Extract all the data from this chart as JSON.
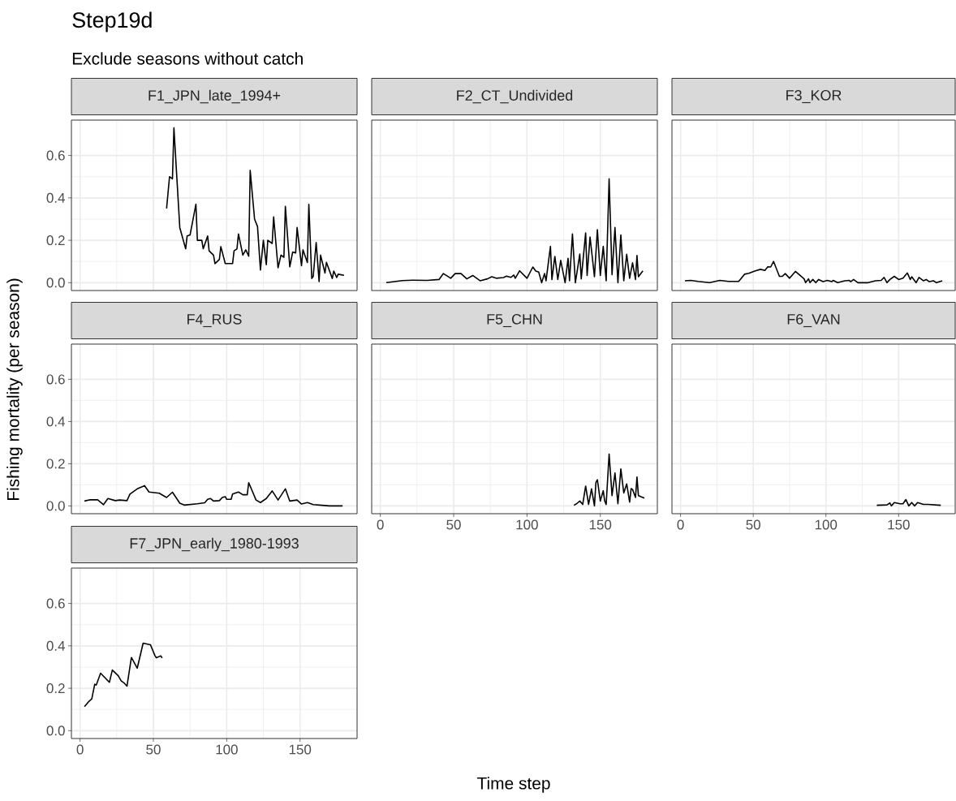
{
  "chart_data": [
    {
      "type": "line",
      "title": "F1_JPN_late_1994+",
      "annotations": [
        "Step19d",
        "Exclude seasons without catch",
        "Time step"
      ],
      "color": "#000000",
      "grid": true,
      "tick_labels": "y",
      "xlim": [
        -5.9,
        188.9
      ],
      "ylim": [
        -0.037,
        0.767
      ],
      "xticks": [
        0,
        50,
        100,
        150
      ],
      "yticks": [
        {
          "value": 0,
          "label": "0.0"
        },
        0.2,
        0.4,
        0.6
      ],
      "x": [
        59,
        61,
        63,
        64,
        68,
        72,
        73,
        75,
        79,
        80,
        83,
        84,
        87,
        88,
        91,
        92,
        95,
        96,
        99,
        104,
        105,
        107,
        108,
        111,
        113,
        115,
        116,
        119,
        121,
        123,
        125,
        127,
        128,
        131,
        132,
        135,
        137,
        139,
        140,
        143,
        145,
        147,
        148,
        151,
        152,
        155,
        156,
        158,
        159,
        161,
        163,
        164,
        167,
        168,
        172,
        173,
        175,
        176,
        180
      ],
      "values": [
        0.35,
        0.5,
        0.49,
        0.73,
        0.26,
        0.16,
        0.22,
        0.225,
        0.37,
        0.2,
        0.2,
        0.16,
        0.22,
        0.15,
        0.13,
        0.09,
        0.11,
        0.17,
        0.09,
        0.09,
        0.15,
        0.16,
        0.23,
        0.13,
        0.155,
        0.125,
        0.53,
        0.3,
        0.265,
        0.06,
        0.2,
        0.085,
        0.2,
        0.185,
        0.31,
        0.07,
        0.13,
        0.12,
        0.36,
        0.075,
        0.145,
        0.14,
        0.26,
        0.08,
        0.155,
        0.095,
        0.37,
        0.02,
        0.03,
        0.19,
        0.005,
        0.13,
        0.046,
        0.096,
        0.02,
        0.055,
        0.025,
        0.04,
        0.035
      ]
    },
    {
      "type": "line",
      "title": "F2_CT_Undivided",
      "color": "#000000",
      "grid": true,
      "tick_labels": false,
      "xlim": [
        -5.9,
        188.9
      ],
      "ylim": [
        -0.037,
        0.767
      ],
      "xticks": [
        0,
        50,
        100,
        150
      ],
      "yticks": [
        {
          "value": 0,
          "label": null
        },
        {
          "value": 0.2,
          "label": null
        },
        {
          "value": 0.4,
          "label": null
        },
        {
          "value": 0.6,
          "label": null
        }
      ],
      "x": [
        4,
        15,
        22,
        32,
        40,
        43,
        48,
        51,
        55,
        59,
        63,
        68,
        73,
        76,
        79,
        84,
        86,
        89,
        91,
        92,
        95,
        100,
        104,
        106,
        108,
        110,
        112,
        113,
        116,
        117,
        119,
        121,
        123,
        126,
        128,
        129,
        131,
        133,
        136,
        137,
        140,
        141,
        143,
        146,
        148,
        150,
        152,
        154,
        156,
        158,
        160,
        162,
        164,
        166,
        168,
        170,
        172,
        174,
        175,
        176,
        179
      ],
      "values": [
        0,
        0.01,
        0.012,
        0.011,
        0.015,
        0.043,
        0.021,
        0.043,
        0.043,
        0.018,
        0.034,
        0.009,
        0.018,
        0.028,
        0.021,
        0.024,
        0.031,
        0.025,
        0.036,
        0.021,
        0.056,
        0.021,
        0.074,
        0.055,
        0.05,
        0,
        0.043,
        0.009,
        0.171,
        0.015,
        0.124,
        0.015,
        0.105,
        0,
        0.115,
        0.009,
        0.23,
        0,
        0.135,
        0.018,
        0.235,
        0.034,
        0.215,
        0.028,
        0.25,
        0.034,
        0.171,
        0.009,
        0.49,
        0.038,
        0.26,
        0,
        0.225,
        0.009,
        0.134,
        0.021,
        0.094,
        0.015,
        0.128,
        0.028,
        0.056
      ]
    },
    {
      "type": "line",
      "title": "F3_KOR",
      "color": "#000000",
      "grid": true,
      "tick_labels": false,
      "xlim": [
        -5.9,
        188.9
      ],
      "ylim": [
        -0.037,
        0.767
      ],
      "xticks": [
        0,
        50,
        100,
        150
      ],
      "yticks": [
        {
          "value": 0,
          "label": null
        },
        {
          "value": 0.2,
          "label": null
        },
        {
          "value": 0.4,
          "label": null
        },
        {
          "value": 0.6,
          "label": null
        }
      ],
      "x": [
        3,
        7,
        12,
        20,
        27,
        33,
        40,
        44,
        47,
        51,
        55,
        58,
        60,
        62,
        64,
        68,
        70,
        72,
        75,
        79,
        85,
        86,
        88,
        89,
        91,
        93,
        95,
        98,
        101,
        104,
        105,
        108,
        113,
        116,
        117,
        119,
        122,
        129,
        134,
        138,
        140,
        142,
        144,
        147,
        150,
        153,
        156,
        158,
        159,
        162,
        164,
        167,
        169,
        171,
        174,
        176,
        180
      ],
      "values": [
        0.009,
        0.011,
        0.006,
        0,
        0.011,
        0.006,
        0.006,
        0.04,
        0.044,
        0.055,
        0.063,
        0.058,
        0.075,
        0.074,
        0.1,
        0.03,
        0.03,
        0.043,
        0.021,
        0.053,
        0.018,
        0,
        0.018,
        0,
        0.015,
        0,
        0.015,
        0.005,
        0.011,
        0.005,
        0.011,
        0,
        0.009,
        0.011,
        0.005,
        0.015,
        0,
        0,
        0.009,
        0.011,
        0.025,
        0,
        0.015,
        0.03,
        0.015,
        0.021,
        0.046,
        0.015,
        0.028,
        0,
        0.025,
        0.009,
        0.015,
        0.005,
        0.009,
        0,
        0.009
      ]
    },
    {
      "type": "line",
      "title": "F4_RUS",
      "ylabel": "Fishing mortality (per season)",
      "color": "#000000",
      "grid": true,
      "tick_labels": "y",
      "xlim": [
        -5.9,
        188.9
      ],
      "ylim": [
        -0.037,
        0.767
      ],
      "xticks": [
        0,
        50,
        100,
        150
      ],
      "yticks": [
        {
          "value": 0,
          "label": "0.0"
        },
        0.2,
        0.4,
        0.6
      ],
      "x": [
        3,
        7,
        12,
        16,
        19,
        24,
        27,
        32,
        34,
        39,
        44,
        47,
        54,
        59,
        63,
        68,
        71,
        80,
        85,
        87,
        89,
        91,
        95,
        97,
        99,
        100,
        103,
        104,
        108,
        111,
        114,
        115,
        120,
        123,
        127,
        131,
        135,
        140,
        143,
        148,
        151,
        155,
        159,
        165,
        170,
        179
      ],
      "values": [
        0.023,
        0.029,
        0.029,
        0.006,
        0.035,
        0.025,
        0.028,
        0.025,
        0.056,
        0.081,
        0.096,
        0.066,
        0.06,
        0.04,
        0.065,
        0.013,
        0.004,
        0.01,
        0.015,
        0.031,
        0.035,
        0.023,
        0.025,
        0.04,
        0.044,
        0.031,
        0.031,
        0.056,
        0.066,
        0.053,
        0.053,
        0.11,
        0.028,
        0.016,
        0.035,
        0.071,
        0.028,
        0.081,
        0.023,
        0.028,
        0.009,
        0.016,
        0.006,
        0.003,
        0,
        0
      ]
    },
    {
      "type": "line",
      "title": "F5_CHN",
      "color": "#000000",
      "grid": true,
      "tick_labels": "x",
      "xlim": [
        -5.9,
        188.9
      ],
      "ylim": [
        -0.037,
        0.767
      ],
      "xticks": [
        0,
        50,
        100,
        150
      ],
      "yticks": [
        {
          "value": 0,
          "label": null
        },
        {
          "value": 0.2,
          "label": null
        },
        {
          "value": 0.4,
          "label": null
        },
        {
          "value": 0.6,
          "label": null
        }
      ],
      "x": [
        132,
        134,
        136,
        138,
        140,
        142,
        144,
        146,
        147,
        148,
        150,
        152,
        153,
        154,
        156,
        158,
        160,
        162,
        164,
        166,
        168,
        170,
        171,
        172,
        174,
        175,
        176,
        180
      ],
      "values": [
        0.003,
        0.011,
        0.023,
        0.007,
        0.094,
        0.007,
        0.081,
        0,
        0.111,
        0.124,
        0.023,
        0.072,
        0.023,
        0.007,
        0.246,
        0.049,
        0.156,
        0.01,
        0.175,
        0.061,
        0.104,
        0.018,
        0.082,
        0.078,
        0.04,
        0.137,
        0.049,
        0.037
      ]
    },
    {
      "type": "line",
      "title": "F6_VAN",
      "color": "#000000",
      "grid": true,
      "tick_labels": "x",
      "xlim": [
        -5.9,
        188.9
      ],
      "ylim": [
        -0.037,
        0.767
      ],
      "xticks": [
        0,
        50,
        100,
        150
      ],
      "yticks": [
        {
          "value": 0,
          "label": null
        },
        {
          "value": 0.2,
          "label": null
        },
        {
          "value": 0.4,
          "label": null
        },
        {
          "value": 0.6,
          "label": null
        }
      ],
      "x": [
        135,
        142,
        144,
        145,
        147,
        151,
        153,
        155,
        157,
        159,
        161,
        163,
        167,
        170,
        179
      ],
      "values": [
        0.003,
        0.005,
        0.014,
        0,
        0.016,
        0.01,
        0.01,
        0.03,
        0,
        0.016,
        0,
        0.016,
        0.007,
        0.007,
        0.003
      ]
    },
    {
      "type": "line",
      "title": "F7_JPN_early_1980-1993",
      "color": "#000000",
      "grid": true,
      "xlim": [
        -5.9,
        188.9
      ],
      "ylim": [
        -0.037,
        0.767
      ],
      "xticks": [
        0,
        50,
        100,
        150
      ],
      "yticks": [
        {
          "value": 0,
          "label": "0.0"
        },
        0.2,
        0.4,
        0.6
      ],
      "x": [
        3,
        6,
        8,
        10,
        11,
        14,
        20,
        22,
        26,
        28,
        30,
        32,
        35,
        39,
        43,
        48,
        51,
        52,
        55,
        56
      ],
      "values": [
        0.113,
        0.138,
        0.15,
        0.219,
        0.215,
        0.271,
        0.228,
        0.286,
        0.259,
        0.235,
        0.225,
        0.21,
        0.345,
        0.295,
        0.413,
        0.405,
        0.355,
        0.344,
        0.353,
        0.343
      ]
    }
  ]
}
